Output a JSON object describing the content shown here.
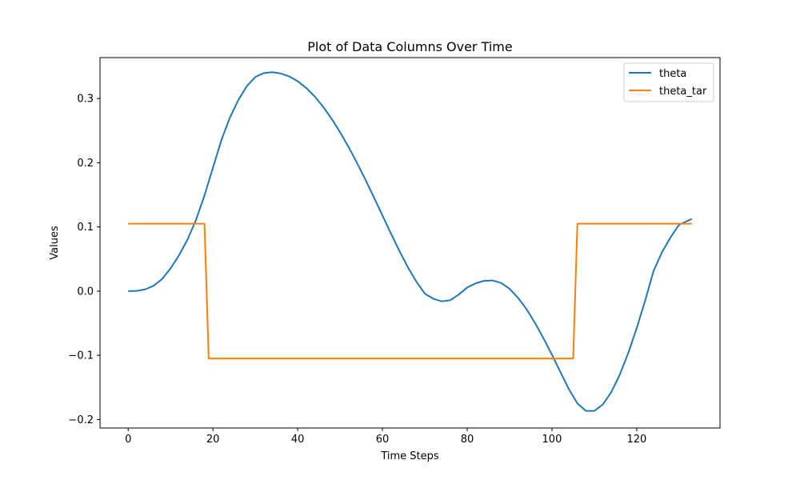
{
  "chart_data": {
    "type": "line",
    "title": "Plot of Data Columns Over Time",
    "xlabel": "Time Steps",
    "ylabel": "Values",
    "xlim": [
      -6.65,
      139.65
    ],
    "ylim": [
      -0.2132,
      0.3638
    ],
    "xticks": [
      0,
      20,
      40,
      60,
      80,
      100,
      120
    ],
    "xtick_labels": [
      "0",
      "20",
      "40",
      "60",
      "80",
      "100",
      "120"
    ],
    "yticks": [
      -0.2,
      -0.1,
      0.0,
      0.1,
      0.2,
      0.3
    ],
    "ytick_labels": [
      "−0.2",
      "−0.1",
      "0.0",
      "0.1",
      "0.2",
      "0.3"
    ],
    "grid": false,
    "legend_position": "top-right",
    "series": [
      {
        "name": "theta",
        "color": "#1f77b4",
        "x": [
          0,
          2,
          4,
          6,
          8,
          10,
          12,
          14,
          16,
          18,
          20,
          22,
          24,
          26,
          28,
          30,
          32,
          34,
          36,
          38,
          40,
          42,
          44,
          46,
          48,
          50,
          52,
          54,
          56,
          58,
          60,
          62,
          64,
          66,
          68,
          70,
          72,
          74,
          76,
          78,
          80,
          82,
          84,
          86,
          88,
          90,
          92,
          94,
          96,
          98,
          100,
          102,
          104,
          106,
          108,
          110,
          112,
          114,
          116,
          118,
          120,
          122,
          124,
          126,
          128,
          130,
          133
        ],
        "y": [
          0.0,
          0.0004,
          0.0027,
          0.0084,
          0.0189,
          0.0354,
          0.0559,
          0.0803,
          0.111,
          0.149,
          0.1922,
          0.2354,
          0.2703,
          0.2978,
          0.3193,
          0.3336,
          0.3397,
          0.3411,
          0.3391,
          0.3345,
          0.327,
          0.3166,
          0.3033,
          0.2873,
          0.2686,
          0.2477,
          0.2246,
          0.1997,
          0.1734,
          0.1459,
          0.1179,
          0.0898,
          0.0626,
          0.0372,
          0.0148,
          -0.0039,
          -0.0119,
          -0.0159,
          -0.0142,
          -0.0053,
          0.0056,
          0.0122,
          0.0161,
          0.0166,
          0.0128,
          0.0036,
          -0.0105,
          -0.0282,
          -0.0495,
          -0.0735,
          -0.0992,
          -0.1262,
          -0.1527,
          -0.1749,
          -0.1865,
          -0.1865,
          -0.1766,
          -0.1573,
          -0.1301,
          -0.0964,
          -0.0575,
          -0.0144,
          0.0319,
          0.0611,
          0.084,
          0.1035,
          0.1125
        ]
      },
      {
        "name": "theta_tar",
        "color": "#ff7f0e",
        "x": [
          0,
          18,
          19,
          105,
          106,
          133
        ],
        "y": [
          0.105,
          0.105,
          -0.105,
          -0.105,
          0.105,
          0.105
        ]
      }
    ]
  }
}
